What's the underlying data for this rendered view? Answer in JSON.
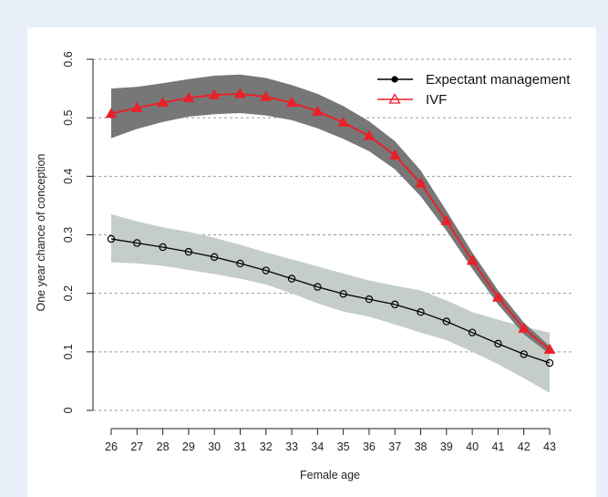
{
  "chart_data": {
    "type": "line",
    "xlabel": "Female age",
    "ylabel": "One year chance of conception",
    "x": [
      26,
      27,
      28,
      29,
      30,
      31,
      32,
      33,
      34,
      35,
      36,
      37,
      38,
      39,
      40,
      41,
      42,
      43
    ],
    "x_tick_labels": [
      "26",
      "27",
      "28",
      "29",
      "30",
      "31",
      "32",
      "33",
      "34",
      "35",
      "36",
      "37",
      "38",
      "39",
      "40",
      "41",
      "42",
      "43"
    ],
    "ylim": [
      0,
      0.6
    ],
    "y_ticks": [
      0,
      0.1,
      0.2,
      0.3,
      0.4,
      0.5,
      0.6
    ],
    "y_tick_labels": [
      "0",
      "0.1",
      "0.2",
      "0.3",
      "0.4",
      "0.5",
      "0.6"
    ],
    "grid": "horizontal-dashed",
    "legend_position": "top-right",
    "series": [
      {
        "name": "Expectant management",
        "color": "#000000",
        "marker": "circle",
        "values": [
          0.293,
          0.286,
          0.279,
          0.271,
          0.262,
          0.251,
          0.239,
          0.225,
          0.211,
          0.199,
          0.19,
          0.181,
          0.168,
          0.152,
          0.133,
          0.114,
          0.096,
          0.081
        ],
        "band_upper": [
          0.335,
          0.323,
          0.313,
          0.305,
          0.295,
          0.283,
          0.27,
          0.258,
          0.246,
          0.234,
          0.222,
          0.213,
          0.205,
          0.188,
          0.168,
          0.155,
          0.143,
          0.133
        ],
        "band_lower": [
          0.253,
          0.251,
          0.247,
          0.24,
          0.233,
          0.225,
          0.215,
          0.2,
          0.183,
          0.169,
          0.16,
          0.147,
          0.133,
          0.12,
          0.1,
          0.079,
          0.055,
          0.03
        ],
        "band_color": "#c5cdc8"
      },
      {
        "name": "IVF",
        "color": "#e8212a",
        "marker": "triangle",
        "values": [
          0.507,
          0.517,
          0.526,
          0.534,
          0.539,
          0.541,
          0.536,
          0.526,
          0.511,
          0.492,
          0.469,
          0.436,
          0.388,
          0.324,
          0.256,
          0.193,
          0.14,
          0.104
        ],
        "band_upper": [
          0.55,
          0.553,
          0.559,
          0.566,
          0.572,
          0.574,
          0.568,
          0.556,
          0.541,
          0.52,
          0.494,
          0.46,
          0.41,
          0.341,
          0.27,
          0.205,
          0.15,
          0.11
        ],
        "band_lower": [
          0.465,
          0.481,
          0.493,
          0.502,
          0.506,
          0.508,
          0.504,
          0.496,
          0.482,
          0.464,
          0.443,
          0.412,
          0.366,
          0.307,
          0.242,
          0.181,
          0.13,
          0.096
        ],
        "band_color": "#777777"
      }
    ]
  }
}
